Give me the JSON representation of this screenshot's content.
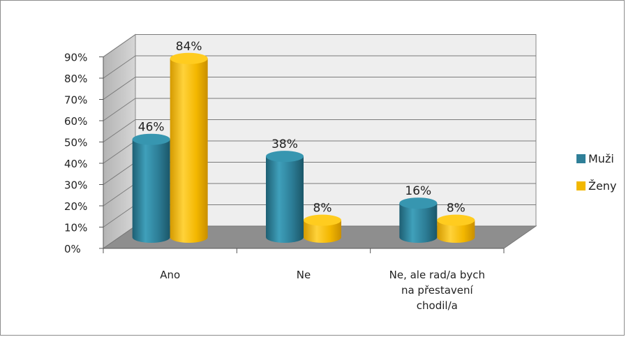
{
  "chart_data": {
    "type": "bar",
    "style": "3d-cylinder",
    "categories": [
      [
        "Ano"
      ],
      [
        "Ne"
      ],
      [
        "Ne, ale rad/a bych",
        "na přestavení",
        "chodil/a"
      ]
    ],
    "series": [
      {
        "name": "Muži",
        "values": [
          46,
          38,
          16
        ],
        "labels": [
          "46%",
          "38%",
          "16%"
        ],
        "color": "#2f7f98"
      },
      {
        "name": "Ženy",
        "values": [
          84,
          8,
          8
        ],
        "labels": [
          "84%",
          "8%",
          "8%"
        ],
        "color": "#f2b800"
      }
    ],
    "y_ticks": [
      "0%",
      "10%",
      "20%",
      "30%",
      "40%",
      "50%",
      "60%",
      "70%",
      "80%",
      "90%"
    ],
    "ylim": [
      0,
      90
    ],
    "grid": true,
    "legend_position": "right"
  }
}
